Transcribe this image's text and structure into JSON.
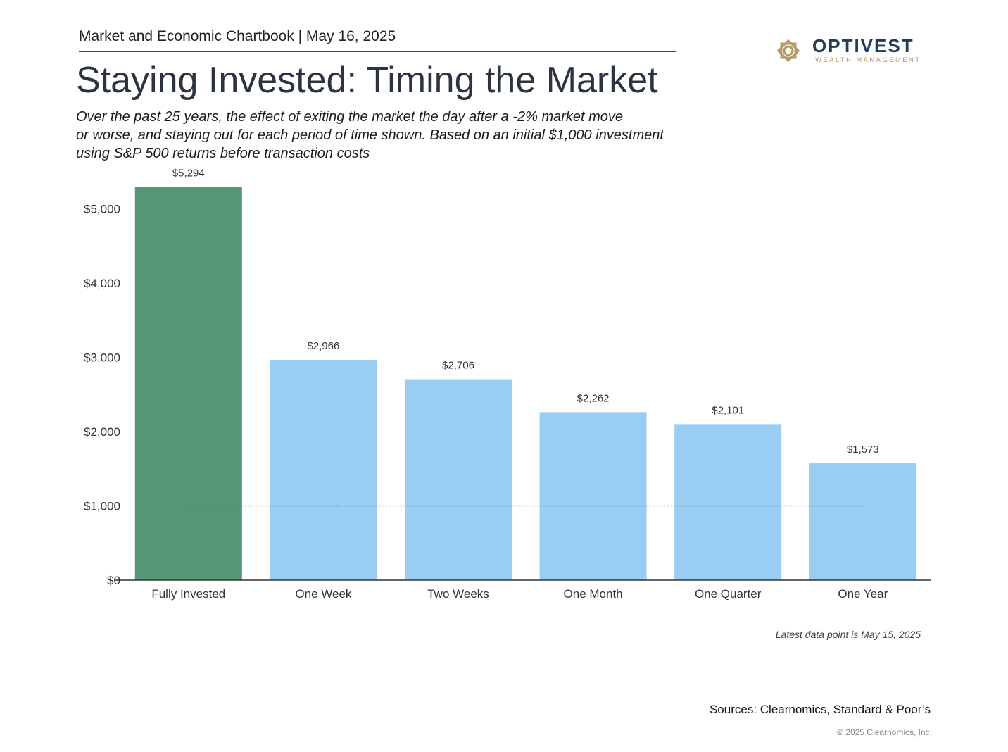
{
  "header": {
    "text": "Market and Economic Chartbook | May 16, 2025"
  },
  "logo": {
    "name": "OPTIVEST",
    "sub": "WEALTH MANAGEMENT",
    "icon": "flower-emblem-icon",
    "colors": {
      "name": "#1f3e5a",
      "gold": "#b59a62"
    }
  },
  "title": "Staying Invested: Timing the Market",
  "subtitle_lines": [
    "Over the past 25 years, the effect of exiting the market the day after a -2% market move",
    "or worse, and staying out for each period of time shown. Based on an initial $1,000 investment",
    "using S&P 500 returns before transaction costs"
  ],
  "chart_data": {
    "type": "bar",
    "categories": [
      "Fully Invested",
      "One Week",
      "Two Weeks",
      "One Month",
      "One Quarter",
      "One Year"
    ],
    "values": [
      5294,
      2966,
      2706,
      2262,
      2101,
      1573
    ],
    "value_labels": [
      "$5,294",
      "$2,966",
      "$2,706",
      "$2,262",
      "$2,101",
      "$1,573"
    ],
    "yticks": [
      0,
      1000,
      2000,
      3000,
      4000,
      5000
    ],
    "ytick_labels": [
      "$0",
      "$1,000",
      "$2,000",
      "$3,000",
      "$4,000",
      "$5,000"
    ],
    "ylim": [
      0,
      5500
    ],
    "reference_line": {
      "value": 1000,
      "style": "dotted"
    },
    "colors": {
      "highlight": "#559674",
      "default": "#99cdf3",
      "axis": "#333333"
    },
    "grid": false,
    "legend": "none"
  },
  "footer": {
    "note": "Latest data point is May 15, 2025",
    "sources": "Sources: Clearnomics, Standard & Poor’s",
    "copyright": "© 2025 Clearnomics, Inc."
  }
}
